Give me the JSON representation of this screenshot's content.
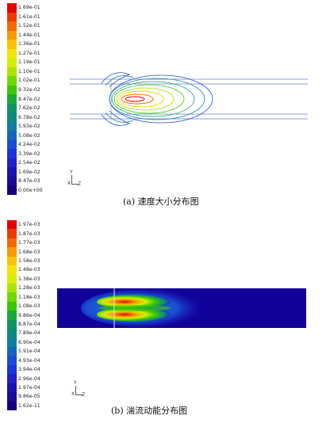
{
  "panel_a": {
    "caption": "(a) 速度大小分布图",
    "colorbar_labels": [
      "1.69e-01",
      "1.61e-01",
      "1.52e-01",
      "1.44e-01",
      "1.36e-01",
      "1.27e-01",
      "1.19e-01",
      "1.10e-01",
      "1.02e-01",
      "9.32e-02",
      "8.47e-02",
      "7.62e-02",
      "6.78e-02",
      "5.93e-02",
      "5.08e-02",
      "4.24e-02",
      "3.39e-02",
      "2.54e-02",
      "1.69e-02",
      "8.47e-03",
      "0.00e+00"
    ],
    "axis_y": "Y",
    "axis_z": "Z",
    "axis_x": "X"
  },
  "panel_b": {
    "caption": "(b) 湍流动能分布图",
    "colorbar_labels": [
      "1.97e-03",
      "1.87e-03",
      "1.77e-03",
      "1.68e-03",
      "1.58e-03",
      "1.48e-03",
      "1.38e-03",
      "1.28e-03",
      "1.18e-03",
      "1.08e-03",
      "9.86e-04",
      "8.87e-04",
      "7.89e-04",
      "6.90e-04",
      "5.91e-04",
      "4.93e-04",
      "3.94e-04",
      "2.96e-04",
      "1.97e-04",
      "9.86e-05",
      "1.62e-11"
    ],
    "axis_y": "Y",
    "axis_z": "Z",
    "axis_x": "X"
  },
  "colors": {
    "scale": [
      "#e60000",
      "#f03a00",
      "#f56a00",
      "#f89a00",
      "#fbc400",
      "#f5e600",
      "#d6ef00",
      "#a8e800",
      "#6fd900",
      "#3cc800",
      "#1aa83c",
      "#10945e",
      "#0d8a80",
      "#0d7fa0",
      "#1566c0",
      "#1a4dd6",
      "#1a35dc",
      "#1e22c8",
      "#1c12b0",
      "#1a0a98",
      "#150080"
    ]
  }
}
